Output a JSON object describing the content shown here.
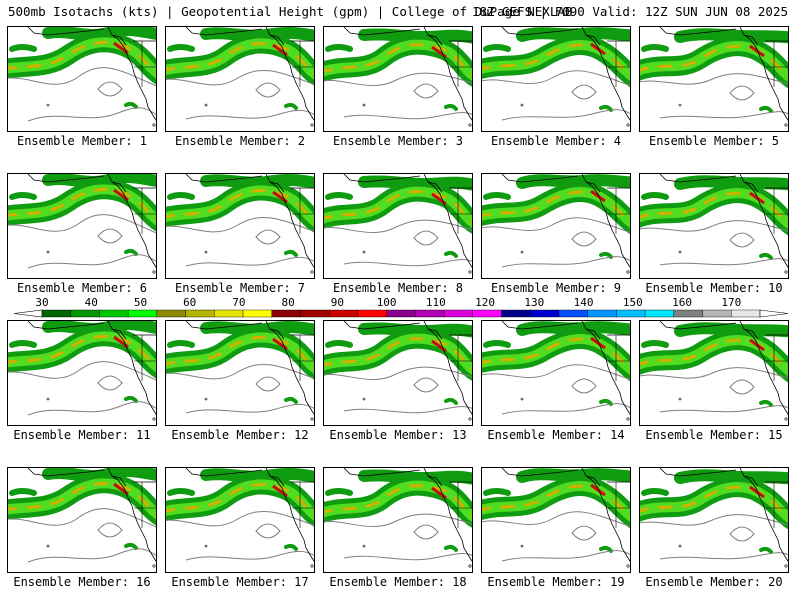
{
  "header": {
    "title_left": "500mb Isotachs (kts) | Geopotential Height (gpm) | College of DuPage NEXLAB",
    "title_right": "18Z GEFS | F090 Valid: 12Z SUN JUN 08 2025"
  },
  "members": [
    "Ensemble Member: 1",
    "Ensemble Member: 2",
    "Ensemble Member: 3",
    "Ensemble Member: 4",
    "Ensemble Member: 5",
    "Ensemble Member: 6",
    "Ensemble Member: 7",
    "Ensemble Member: 8",
    "Ensemble Member: 9",
    "Ensemble Member: 10",
    "Ensemble Member: 11",
    "Ensemble Member: 12",
    "Ensemble Member: 13",
    "Ensemble Member: 14",
    "Ensemble Member: 15",
    "Ensemble Member: 16",
    "Ensemble Member: 17",
    "Ensemble Member: 18",
    "Ensemble Member: 19",
    "Ensemble Member: 20"
  ],
  "colorbar": {
    "labels": [
      "30",
      "40",
      "50",
      "60",
      "70",
      "80",
      "90",
      "100",
      "110",
      "120",
      "130",
      "140",
      "150",
      "160",
      "170"
    ],
    "colors": [
      "#006400",
      "#009600",
      "#00c800",
      "#00ff00",
      "#8c8c00",
      "#b4b400",
      "#e6e600",
      "#ffff00",
      "#8b0000",
      "#a00000",
      "#c80000",
      "#ff0000",
      "#8b008b",
      "#b400b4",
      "#dc00dc",
      "#ff00ff",
      "#00008b",
      "#0000cd",
      "#0050ff",
      "#0096ff",
      "#00bfff",
      "#00e5ff",
      "#808080",
      "#b4b4b4",
      "#e6e6e6"
    ]
  },
  "map_colors": {
    "jet_outer": "#109c10",
    "jet_inner": "#50dc20",
    "jet_core": "#d2b000",
    "jet_max": "#c01010",
    "height_contour": "#808080",
    "coastline": "#000000"
  }
}
